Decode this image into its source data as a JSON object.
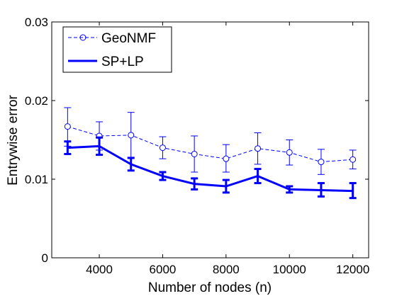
{
  "colors": {
    "series": "#0000ff",
    "axis": "#000000",
    "background": "#ffffff"
  },
  "chart_data": {
    "type": "line",
    "title": "",
    "xlabel": "Number of nodes (n)",
    "ylabel": "Entrywise error",
    "xlim": [
      2500,
      12500
    ],
    "ylim": [
      0,
      0.03
    ],
    "xticks": [
      4000,
      6000,
      8000,
      10000,
      12000
    ],
    "xtick_labels": [
      "4000",
      "6000",
      "8000",
      "10000",
      "12000"
    ],
    "yticks": [
      0,
      0.01,
      0.02,
      0.03
    ],
    "ytick_labels": [
      "0",
      "0.01",
      "0.02",
      "0.03"
    ],
    "grid": false,
    "legend_position": "top-left",
    "x": [
      3000,
      4000,
      5000,
      6000,
      7000,
      8000,
      9000,
      10000,
      11000,
      12000
    ],
    "series": [
      {
        "name": "GeoNMF",
        "style": "dashed",
        "marker": "circle",
        "values": [
          0.0167,
          0.0155,
          0.0156,
          0.014,
          0.0132,
          0.0126,
          0.0139,
          0.0134,
          0.0122,
          0.0125
        ],
        "err_low": [
          0.0142,
          0.0137,
          0.0128,
          0.0126,
          0.0109,
          0.0109,
          0.0119,
          0.0118,
          0.0106,
          0.0113
        ],
        "err_high": [
          0.0191,
          0.0173,
          0.0185,
          0.0154,
          0.0155,
          0.0144,
          0.0159,
          0.015,
          0.0138,
          0.0137
        ]
      },
      {
        "name": "SP+LP",
        "style": "solid",
        "marker": "none",
        "values": [
          0.014,
          0.0142,
          0.0119,
          0.0104,
          0.0094,
          0.0091,
          0.0104,
          0.0087,
          0.0086,
          0.0085
        ],
        "err_low": [
          0.0132,
          0.0131,
          0.0111,
          0.0099,
          0.0087,
          0.0083,
          0.0095,
          0.0083,
          0.0078,
          0.0076
        ],
        "err_high": [
          0.0148,
          0.0153,
          0.0127,
          0.0109,
          0.0101,
          0.0099,
          0.0113,
          0.0091,
          0.0095,
          0.0095
        ]
      }
    ]
  }
}
